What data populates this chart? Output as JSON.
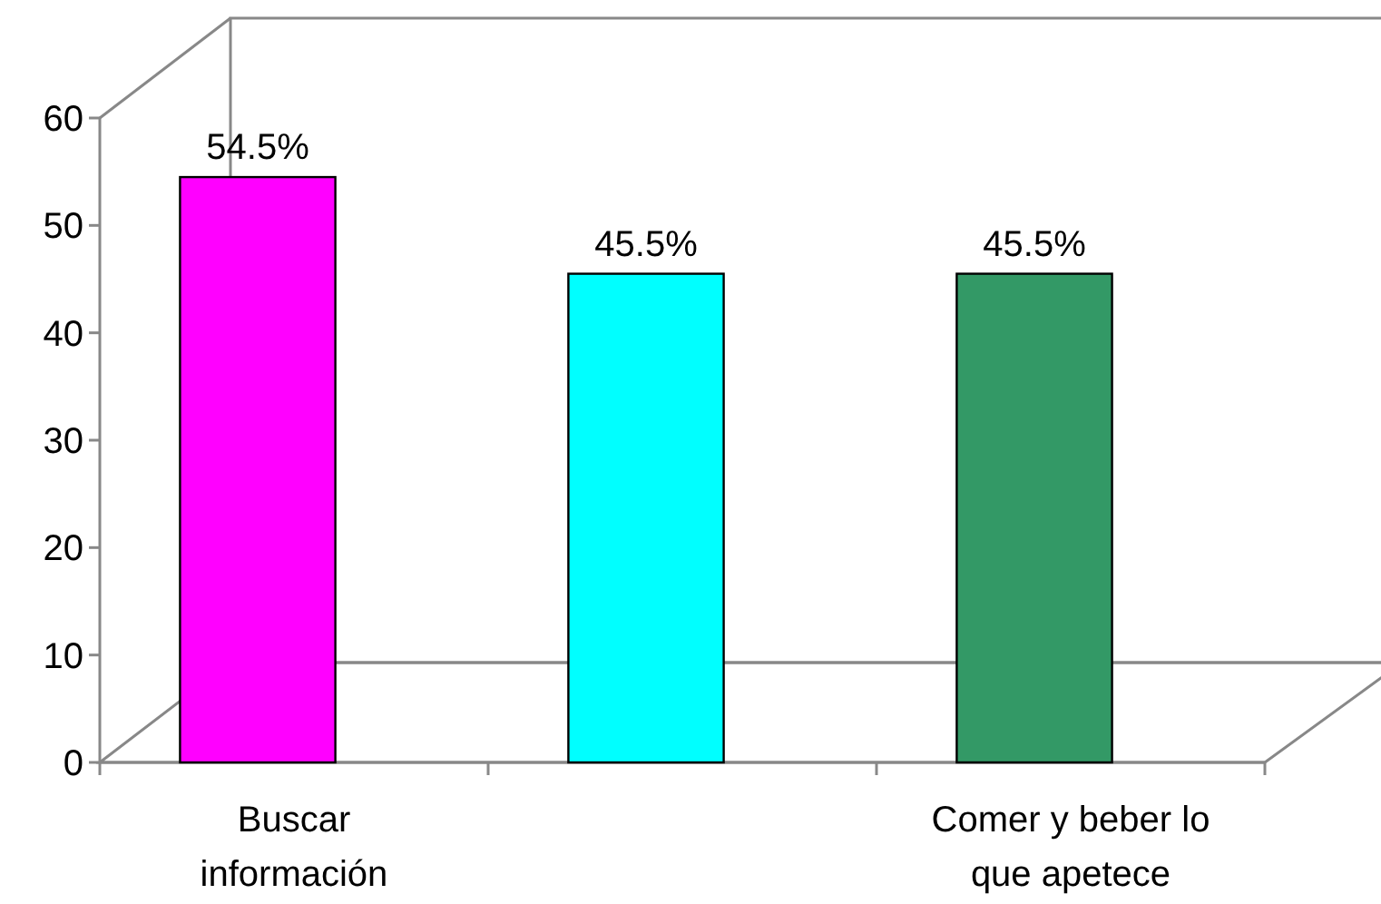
{
  "chart_data": {
    "type": "bar",
    "categories": [
      "Buscar información",
      null,
      "Comer y beber lo que apetece"
    ],
    "values": [
      54.5,
      45.5,
      45.5
    ],
    "colors": [
      "#ff00ff",
      "#00ffff",
      "#339966"
    ],
    "value_labels": [
      "54.5%",
      "45.5%",
      "45.5%"
    ],
    "ylim": [
      0,
      60
    ],
    "yticks": [
      0,
      10,
      20,
      30,
      40,
      50,
      60
    ],
    "grid": false
  }
}
